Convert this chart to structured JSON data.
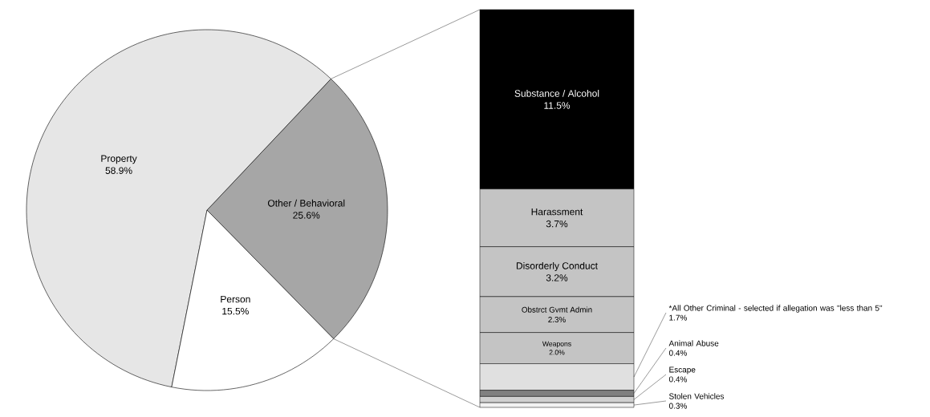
{
  "chart_data": [
    {
      "type": "pie",
      "categories": [
        "Other / Behavioral",
        "Property",
        "Person"
      ],
      "values": [
        25.6,
        58.9,
        15.5
      ],
      "colors": [
        "#a6a6a6",
        "#e6e6e6",
        "#ffffff"
      ],
      "value_labels": [
        "25.6%",
        "58.9%",
        "15.5%"
      ]
    },
    {
      "type": "bar",
      "stacked": true,
      "categories": [
        null
      ],
      "series": [
        {
          "name": "Stolen Vehicles",
          "color": "#f2f2f2",
          "values": [
            0.3
          ],
          "value_labels": [
            "0.3%"
          ]
        },
        {
          "name": "Escape",
          "color": "#d0d0d0",
          "values": [
            0.4
          ],
          "value_labels": [
            "0.4%"
          ]
        },
        {
          "name": "Animal Abuse",
          "color": "#808080",
          "values": [
            0.4
          ],
          "value_labels": [
            "0.4%"
          ]
        },
        {
          "name": "*All Other Criminal - selected if allegation was \"less than 5\"",
          "color": "#e0e0e0",
          "values": [
            1.7
          ],
          "value_labels": [
            "1.7%"
          ]
        },
        {
          "name": "Weapons",
          "color": "#c4c4c4",
          "values": [
            2.0
          ],
          "value_labels": [
            "2.0%"
          ]
        },
        {
          "name": "Obstrct Gvmt Admin",
          "color": "#c4c4c4",
          "values": [
            2.3
          ],
          "value_labels": [
            "2.3%"
          ]
        },
        {
          "name": "Disorderly Conduct",
          "color": "#c4c4c4",
          "values": [
            3.2
          ],
          "value_labels": [
            "3.2%"
          ]
        },
        {
          "name": "Harassment",
          "color": "#c4c4c4",
          "values": [
            3.7
          ],
          "value_labels": [
            "3.7%"
          ]
        },
        {
          "name": "Substance / Alcohol",
          "color": "#000000",
          "values": [
            11.5
          ],
          "value_labels": [
            "11.5%"
          ]
        }
      ]
    }
  ]
}
